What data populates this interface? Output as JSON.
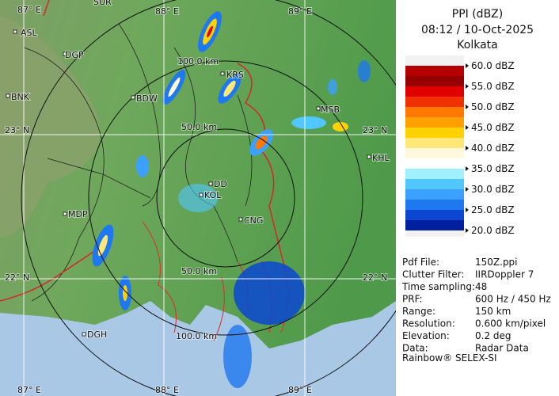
{
  "map": {
    "labels": [
      "87° E",
      "SUR",
      "88° E",
      "89° E",
      "ASL",
      "DGP",
      "100.0 km",
      "KRS",
      "BNK",
      "BDW",
      "MSB",
      "50.0 km",
      "23° N",
      "23° N",
      "KHL",
      "DD",
      "KOL",
      "MDP",
      "CNG",
      "50.0 km",
      "22° N",
      "22° N",
      "DGH",
      "100.0 km",
      "87° E",
      "88° E",
      "89° E"
    ]
  },
  "legend": {
    "title": "PPI (dBZ)",
    "time": "08:12 / 10-Oct-2025",
    "site": "Kolkata",
    "labels": [
      "60.0 dBZ",
      "55.0 dBZ",
      "50.0 dBZ",
      "45.0 dBZ",
      "40.0 dBZ",
      "35.0 dBZ",
      "30.0 dBZ",
      "25.0 dBZ",
      "20.0 dBZ"
    ],
    "colors": [
      "#b40000",
      "#960000",
      "#e00000",
      "#f03000",
      "#ff7800",
      "#ffa000",
      "#ffd200",
      "#ffe878",
      "#fff8dc",
      "#ffffff",
      "#a0f0ff",
      "#50c8ff",
      "#3ca0ff",
      "#1e78f0",
      "#0a46d2",
      "#0020a0"
    ]
  },
  "info": {
    "rows": [
      [
        "Pdf File:",
        "150Z.ppi"
      ],
      [
        "Clutter Filter:",
        "IIRDoppler 7"
      ],
      [
        "Time sampling:",
        "48"
      ],
      [
        "PRF:",
        "600 Hz / 450 Hz"
      ],
      [
        "Range:",
        "150 km"
      ],
      [
        "Resolution:",
        "0.600 km/pixel"
      ],
      [
        "Elevation:",
        "0.2 deg"
      ],
      [
        "Data:",
        "Radar Data"
      ]
    ],
    "footer": "Rainbow® SELEX-SI"
  }
}
